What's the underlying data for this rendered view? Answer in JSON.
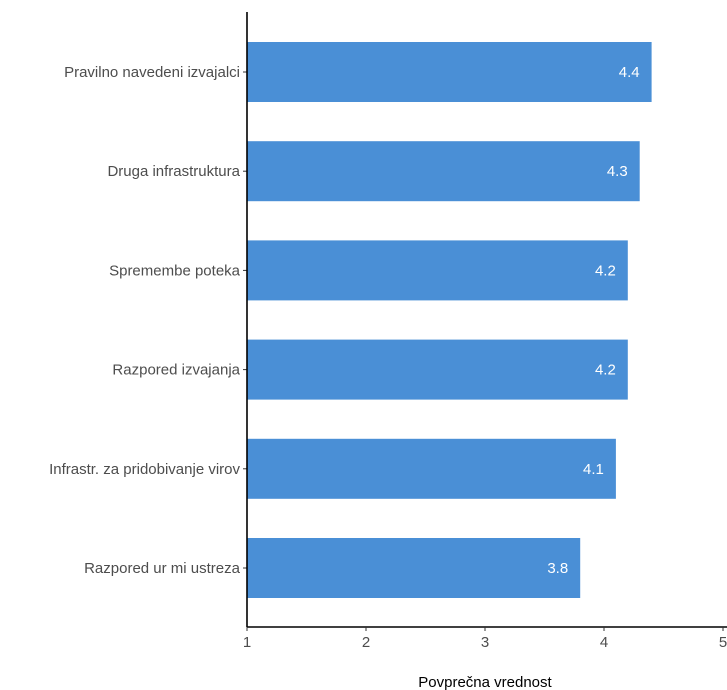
{
  "chart_data": {
    "type": "bar",
    "orientation": "horizontal",
    "categories": [
      "Pravilno navedeni izvajalci",
      "Druga infrastruktura",
      "Spremembe poteka",
      "Razpored izvajanja",
      "Infrastr. za pridobivanje virov",
      "Razpored ur mi ustreza"
    ],
    "values": [
      4.4,
      4.3,
      4.2,
      4.2,
      4.1,
      3.8
    ],
    "data_labels": [
      "4.4",
      "4.3",
      "4.2",
      "4.2",
      "4.1",
      "3.8"
    ],
    "xlabel": "Povprečna vrednost",
    "ylabel": "",
    "xlim": [
      1,
      5
    ],
    "x_ticks": [
      1,
      2,
      3,
      4,
      5
    ],
    "x_tick_labels": [
      "1",
      "2",
      "3",
      "4",
      "5"
    ],
    "bar_color": "#4a8fd6",
    "grid": false
  }
}
